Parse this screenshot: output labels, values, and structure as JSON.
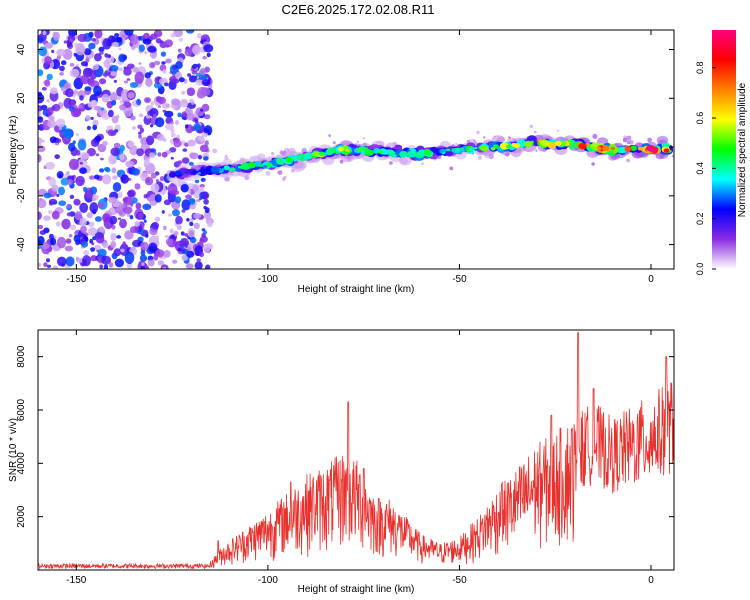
{
  "title": "C2E6.2025.172.02.08.R11",
  "colors": {
    "snr_line": "#e8302c",
    "axis": "#000000",
    "colormap": [
      "#ffffff",
      "#8a2be2",
      "#0000ff",
      "#00ffff",
      "#00ff00",
      "#ffff00",
      "#ff8000",
      "#ff0000",
      "#ff0080"
    ]
  },
  "chart_data": [
    {
      "type": "heatmap",
      "xlabel": "Height of straight line (km)",
      "ylabel": "Frequency (Hz)",
      "xlim": [
        -160,
        6
      ],
      "ylim": [
        -50,
        48
      ],
      "xticks": [
        -150,
        -100,
        -50,
        0
      ],
      "yticks": [
        -40,
        -20,
        0,
        20,
        40
      ],
      "colorbar": {
        "label": "Normalized spectral amplitude",
        "range": [
          0,
          0.95
        ],
        "ticks": [
          "0.0",
          "0.2",
          "0.4",
          "0.6",
          "0.8"
        ]
      },
      "noise_region": [
        -160,
        -115
      ],
      "ridge": {
        "x": [
          -125,
          -110,
          -100,
          -90,
          -80,
          -70,
          -60,
          -50,
          -40,
          -30,
          -20,
          -10,
          0,
          5
        ],
        "freq": [
          -11,
          -9,
          -7,
          -4,
          -1,
          -2,
          -3,
          -1,
          0,
          2,
          1,
          -1,
          -1,
          -1
        ],
        "amplitude": [
          0.25,
          0.4,
          0.45,
          0.5,
          0.6,
          0.45,
          0.5,
          0.4,
          0.55,
          0.7,
          0.8,
          0.9,
          0.95,
          0.85
        ]
      }
    },
    {
      "type": "line",
      "xlabel": "Height of straight line (km)",
      "ylabel": "SNR (10 * v/v)",
      "xlim": [
        -160,
        6
      ],
      "ylim": [
        0,
        9000
      ],
      "xticks": [
        -150,
        -100,
        -50,
        0
      ],
      "yticks": [
        2000,
        4000,
        6000,
        8000
      ],
      "series": [
        {
          "envelope": {
            "x": [
              -160,
              -115,
              -112,
              -105,
              -100,
              -95,
              -90,
              -85,
              -80,
              -76,
              -72,
              -68,
              -60,
              -55,
              -50,
              -45,
              -40,
              -35,
              -30,
              -25,
              -20,
              -15,
              -10,
              -5,
              0,
              6
            ],
            "y": [
              300,
              300,
              800,
              1500,
              2000,
              2600,
              3200,
              3500,
              4000,
              3600,
              2500,
              2400,
              1200,
              900,
              1100,
              1800,
              2800,
              3400,
              4200,
              4600,
              5200,
              5800,
              5200,
              5600,
              6000,
              6600
            ]
          },
          "peaks": {
            "x": [
              -113,
              -94,
              -79,
              -75,
              -39,
              -26,
              -19,
              -15,
              4
            ],
            "y": [
              1100,
              3300,
              6300,
              3800,
              3200,
              5800,
              8900,
              6800,
              8000
            ]
          }
        }
      ]
    }
  ]
}
